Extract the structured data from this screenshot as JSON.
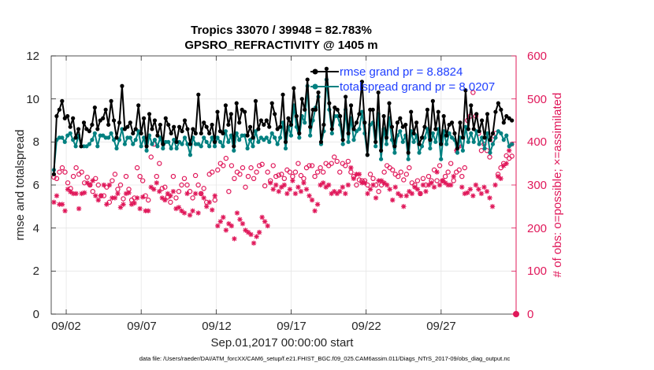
{
  "chart_data": {
    "type": "line",
    "title_line1": "Tropics 33070 / 39948 = 82.783%",
    "title_line2": "GPSRO_REFRACTIVITY @ 1405 m",
    "xlabel": "Sep.01,2017 00:00:00 start",
    "ylabel_left": "rmse and totalspread",
    "ylabel_right": "# of obs: o=possible; ×=assimilated",
    "x_range_days": [
      0,
      31
    ],
    "ylim_left": [
      0,
      12
    ],
    "ylim_right": [
      0,
      600
    ],
    "x_ticks": [
      {
        "day": 1,
        "label": "09/02"
      },
      {
        "day": 6,
        "label": "09/07"
      },
      {
        "day": 11,
        "label": "09/12"
      },
      {
        "day": 16,
        "label": "09/17"
      },
      {
        "day": 21,
        "label": "09/22"
      },
      {
        "day": 26,
        "label": "09/27"
      }
    ],
    "y_ticks_left": [
      "0",
      "2",
      "4",
      "6",
      "8",
      "10",
      "12"
    ],
    "y_ticks_right": [
      "0",
      "100",
      "200",
      "300",
      "400",
      "500",
      "600"
    ],
    "legend": [
      "rmse grand pr = 8.8824",
      "totalspread grand pr = 8.0207"
    ],
    "series": [
      {
        "name": "rmse",
        "axis": "left",
        "color": "#000000",
        "values": [
          6.5,
          9.2,
          9.5,
          9.9,
          9.1,
          9.2,
          8.7,
          9.1,
          8.2,
          8.6,
          7.8,
          8.9,
          8.6,
          8.5,
          8.8,
          9.6,
          8.6,
          9.0,
          9.1,
          9.5,
          8.8,
          9.9,
          9.0,
          8.2,
          8.9,
          10.6,
          8.6,
          8.7,
          8.9,
          8.4,
          8.6,
          9.7,
          8.4,
          9.1,
          7.8,
          9.3,
          8.6,
          9.0,
          8.3,
          8.8,
          7.9,
          9.1,
          8.8,
          8.4,
          8.7,
          8.0,
          8.7,
          8.5,
          9.0,
          8.6,
          7.9,
          8.6,
          8.4,
          10.2,
          8.4,
          8.9,
          8.7,
          8.4,
          8.8,
          8.0,
          9.4,
          8.5,
          8.4,
          9.7,
          8.8,
          9.3,
          7.8,
          9.8,
          8.9,
          9.5,
          9.4,
          8.3,
          8.7,
          8.2,
          9.9,
          8.6,
          9.0,
          8.8,
          9.0,
          8.7,
          9.8,
          9.3,
          8.6,
          8.7,
          10.2,
          8.0,
          9.1,
          8.8,
          10.5,
          9.2,
          8.4,
          10.0,
          9.5,
          10.9,
          8.7,
          9.5,
          9.5,
          10.3,
          8.0,
          8.8,
          11.4,
          9.8,
          8.6,
          9.6,
          9.5,
          9.2,
          8.1,
          10.1,
          8.4,
          9.7,
          8.6,
          8.9,
          9.3,
          10.8,
          8.9,
          7.4,
          9.5,
          9.5,
          8.0,
          10.3,
          7.6,
          9.2,
          8.2,
          9.8,
          8.7,
          7.8,
          8.9,
          9.1,
          8.7,
          8.8,
          7.5,
          9.4,
          8.4,
          8.9,
          7.9,
          8.2,
          8.7,
          9.5,
          8.1,
          9.9,
          8.6,
          9.4,
          7.9,
          9.2,
          8.3,
          8.8,
          8.9,
          8.4,
          7.7,
          8.9,
          8.2,
          10.4,
          8.6,
          9.7,
          8.6,
          9.3,
          8.5,
          9.0,
          8.2,
          9.3,
          8.1,
          8.4,
          9.4,
          9.8,
          9.5,
          8.9,
          9.2,
          9.1,
          9.0
        ]
      },
      {
        "name": "totalspread",
        "axis": "left",
        "color": "#008080",
        "values": [
          6.7,
          8.1,
          8.2,
          8.2,
          8.0,
          8.3,
          8.4,
          8.1,
          7.8,
          8.3,
          7.8,
          7.8,
          7.8,
          7.9,
          8.1,
          8.4,
          7.8,
          8.3,
          8.3,
          8.2,
          8.2,
          8.4,
          8.1,
          7.7,
          8.1,
          8.6,
          7.9,
          8.2,
          8.2,
          7.9,
          8.1,
          8.5,
          7.8,
          8.2,
          7.6,
          8.3,
          7.9,
          8.1,
          7.8,
          8.2,
          7.7,
          8.0,
          8.0,
          7.7,
          8.1,
          7.7,
          8.0,
          7.9,
          8.2,
          7.9,
          7.4,
          8.2,
          7.9,
          7.9,
          7.8,
          8.2,
          8.0,
          7.8,
          8.2,
          7.8,
          8.2,
          8.0,
          7.8,
          8.5,
          8.0,
          8.3,
          7.6,
          8.4,
          8.1,
          8.3,
          8.3,
          7.7,
          8.1,
          7.8,
          8.5,
          8.0,
          8.2,
          8.1,
          8.2,
          8.0,
          8.4,
          8.2,
          7.9,
          8.2,
          8.9,
          7.7,
          8.7,
          8.3,
          9.7,
          8.7,
          8.2,
          9.2,
          8.9,
          10.6,
          8.3,
          9.0,
          9.6,
          10.1,
          7.9,
          8.5,
          10.9,
          9.5,
          8.4,
          9.2,
          9.2,
          8.8,
          7.9,
          9.5,
          8.0,
          9.1,
          8.1,
          8.5,
          8.6,
          9.4,
          8.4,
          7.4,
          8.8,
          8.9,
          7.8,
          9.3,
          7.2,
          8.6,
          7.9,
          9.1,
          8.1,
          7.5,
          8.3,
          8.5,
          8.0,
          8.3,
          7.2,
          8.5,
          8.0,
          8.3,
          7.5,
          7.8,
          8.2,
          8.6,
          7.7,
          8.4,
          8.0,
          8.6,
          7.2,
          8.5,
          7.9,
          8.4,
          8.2,
          8.1,
          7.5,
          8.2,
          7.6,
          8.7,
          8.0,
          8.4,
          8.0,
          8.5,
          7.9,
          8.2,
          7.7,
          8.4,
          7.5,
          7.9,
          8.2,
          8.5,
          8.4,
          8.1,
          8.3,
          7.8,
          7.9
        ]
      },
      {
        "name": "possible",
        "axis": "right",
        "color": "#e0185a",
        "marker": "circle",
        "values": [
          318,
          315,
          330,
          340,
          330,
          305,
          292,
          320,
          340,
          325,
          330,
          305,
          318,
          300,
          285,
          315,
          300,
          275,
          275,
          295,
          260,
          310,
          325,
          290,
          300,
          268,
          320,
          290,
          265,
          270,
          340,
          320,
          310,
          275,
          265,
          365,
          395,
          320,
          350,
          292,
          295,
          272,
          260,
          320,
          270,
          285,
          300,
          315,
          300,
          285,
          270,
          322,
          300,
          280,
          292,
          260,
          325,
          330,
          265,
          335,
          350,
          345,
          362,
          285,
          345,
          315,
          330,
          325,
          340,
          295,
          320,
          340,
          315,
          330,
          345,
          348,
          298,
          330,
          310,
          345,
          320,
          323,
          325,
          315,
          335,
          330,
          320,
          330,
          350,
          322,
          315,
          340,
          345,
          345,
          320,
          330,
          340,
          330,
          350,
          345,
          350,
          365,
          355,
          330,
          350,
          345,
          355,
          330,
          320,
          300,
          312,
          310,
          310,
          300,
          325,
          315,
          300,
          285,
          300,
          330,
          345,
          340,
          335,
          325,
          320,
          330,
          312,
          325,
          340,
          305,
          300,
          310,
          280,
          315,
          300,
          320,
          310,
          335,
          310,
          345,
          310,
          320,
          330,
          350,
          310,
          330,
          335,
          320,
          340,
          450,
          460,
          515,
          460,
          420,
          380,
          395,
          380,
          365,
          405,
          420,
          325,
          340,
          350,
          368,
          362,
          367
        ]
      },
      {
        "name": "assimilated",
        "axis": "right",
        "color": "#e0185a",
        "marker": "x",
        "values": [
          260,
          275,
          255,
          255,
          240,
          290,
          284,
          280,
          280,
          245,
          280,
          282,
          305,
          300,
          310,
          275,
          265,
          275,
          300,
          255,
          300,
          270,
          270,
          280,
          248,
          255,
          280,
          282,
          255,
          258,
          270,
          245,
          272,
          240,
          240,
          295,
          290,
          305,
          285,
          270,
          265,
          280,
          275,
          285,
          245,
          248,
          240,
          235,
          280,
          230,
          240,
          280,
          235,
          280,
          270,
          250,
          260,
          242,
          275,
          205,
          215,
          225,
          195,
          210,
          205,
          175,
          235,
          220,
          210,
          195,
          190,
          185,
          165,
          180,
          190,
          225,
          215,
          205,
          305,
          290,
          300,
          285,
          295,
          300,
          280,
          290,
          310,
          280,
          295,
          285,
          305,
          290,
          275,
          265,
          240,
          255,
          300,
          305,
          295,
          300,
          280,
          285,
          280,
          285,
          295,
          280,
          300,
          340,
          315,
          325,
          325,
          305,
          305,
          280,
          290,
          300,
          270,
          310,
          310,
          305,
          300,
          290,
          265,
          295,
          280,
          275,
          250,
          275,
          285,
          280,
          295,
          290,
          280,
          300,
          285,
          300,
          305,
          295,
          330,
          300,
          310,
          305,
          300,
          300,
          320,
          380,
          390,
          295,
          280,
          282,
          290,
          275,
          300,
          290,
          280,
          295,
          285,
          270,
          250,
          300,
          320,
          315,
          345,
          350,
          380,
          395
        ]
      }
    ],
    "footnote": "data file: /Users/raeder/DAI/ATM_forcXX/CAM6_setup/f.e21.FHIST_BGC.f09_025.CAM6assim.011/Diags_NTrS_2017-09/obs_diag_output.nc"
  },
  "colors": {
    "rmse": "#000000",
    "totalspread": "#008080",
    "obs": "#e0185a",
    "legend_text": "#1f3fff"
  }
}
